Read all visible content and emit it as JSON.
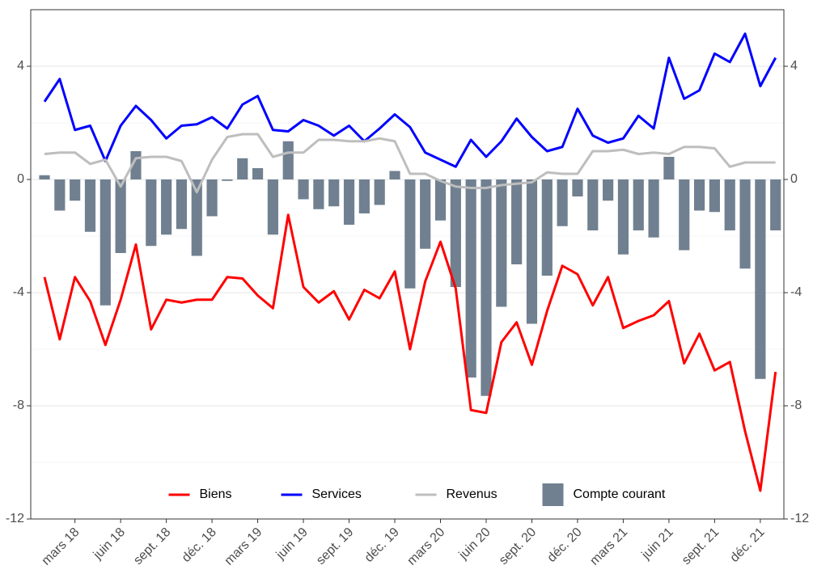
{
  "chart_data": {
    "type": "combo",
    "categories": [
      null,
      null,
      "mars 18",
      null,
      null,
      "juin 18",
      null,
      null,
      "sept. 18",
      null,
      null,
      "déc. 18",
      null,
      null,
      "mars 19",
      null,
      null,
      "juin 19",
      null,
      null,
      "sept. 19",
      null,
      null,
      "déc. 19",
      null,
      null,
      "mars 20",
      null,
      null,
      "juin 20",
      null,
      null,
      "sept. 20",
      null,
      null,
      "déc. 20",
      null,
      null,
      "mars 21",
      null,
      null,
      "juin 21",
      null,
      null,
      "sept. 21",
      null,
      null,
      "déc. 21",
      null
    ],
    "series": [
      {
        "name": "Biens",
        "type": "line",
        "color": "#ff0000",
        "values": [
          -3.45,
          -5.65,
          -3.45,
          -4.3,
          -5.85,
          -4.25,
          -2.3,
          -5.3,
          -4.25,
          -4.35,
          -4.25,
          -4.25,
          -3.45,
          -3.5,
          -4.1,
          -4.55,
          -1.25,
          -3.8,
          -4.35,
          -3.95,
          -4.95,
          -3.9,
          -4.2,
          -3.25,
          -6.0,
          -3.6,
          -2.2,
          -3.85,
          -8.15,
          -8.25,
          -5.75,
          -5.05,
          -6.55,
          -4.65,
          -3.05,
          -3.35,
          -4.45,
          -3.45,
          -5.25,
          -5.0,
          -4.8,
          -4.3,
          -6.5,
          -5.45,
          -6.75,
          -6.45,
          -8.9,
          -11.0,
          -6.8
        ]
      },
      {
        "name": "Services",
        "type": "line",
        "color": "#0000ff",
        "values": [
          2.75,
          3.55,
          1.75,
          1.9,
          0.65,
          1.9,
          2.6,
          2.1,
          1.45,
          1.9,
          1.95,
          2.2,
          1.8,
          2.65,
          2.95,
          1.75,
          1.7,
          2.1,
          1.9,
          1.55,
          1.9,
          1.35,
          1.8,
          2.3,
          1.85,
          0.95,
          0.7,
          0.45,
          1.4,
          0.8,
          1.35,
          2.15,
          1.5,
          1.0,
          1.15,
          2.5,
          1.55,
          1.3,
          1.45,
          2.25,
          1.8,
          4.3,
          2.85,
          3.15,
          4.45,
          4.15,
          5.15,
          3.3,
          4.3
        ]
      },
      {
        "name": "Revenus",
        "type": "line",
        "color": "#bebebe",
        "values": [
          0.9,
          0.95,
          0.95,
          0.55,
          0.7,
          -0.25,
          0.75,
          0.8,
          0.8,
          0.65,
          -0.45,
          0.7,
          1.5,
          1.6,
          1.6,
          0.8,
          0.95,
          0.95,
          1.4,
          1.4,
          1.35,
          1.35,
          1.45,
          1.35,
          0.2,
          0.2,
          -0.05,
          -0.25,
          -0.3,
          -0.3,
          -0.2,
          -0.15,
          -0.1,
          0.25,
          0.2,
          0.2,
          1.0,
          1.0,
          1.05,
          0.9,
          0.95,
          0.9,
          1.15,
          1.15,
          1.1,
          0.45,
          0.6,
          0.6,
          0.6
        ]
      },
      {
        "name": "Compte courant",
        "type": "bar",
        "color": "#708090",
        "values": [
          0.15,
          -1.1,
          -0.75,
          -1.85,
          -4.45,
          -2.6,
          1.0,
          -2.35,
          -1.95,
          -1.75,
          -2.7,
          -1.3,
          -0.05,
          0.75,
          0.4,
          -1.95,
          1.35,
          -0.7,
          -1.05,
          -0.95,
          -1.6,
          -1.2,
          -0.9,
          0.3,
          -3.85,
          -2.45,
          -1.45,
          -3.8,
          -7.0,
          -7.65,
          -4.5,
          -3.0,
          -5.1,
          -3.4,
          -1.65,
          -0.6,
          -1.8,
          -0.75,
          -2.65,
          -1.8,
          -2.05,
          0.8,
          -2.5,
          -1.1,
          -1.15,
          -1.8,
          -3.15,
          -7.05,
          -1.8
        ]
      }
    ],
    "ylim": [
      -12,
      6
    ],
    "yticks": [
      -12,
      -8,
      -4,
      0,
      4
    ],
    "y2lim": [
      -12,
      6
    ],
    "y2ticks": [
      -12,
      -8,
      -4,
      0,
      4
    ],
    "grid": true,
    "legend": "bottom"
  }
}
